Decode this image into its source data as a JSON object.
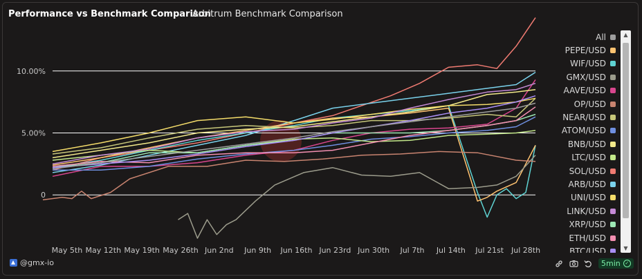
{
  "header": {
    "title": "Performance vs Benchmark Comparison",
    "subtitle": "Arbitrum Benchmark Comparison"
  },
  "footer": {
    "brand": "@gmx-io",
    "refresh": "5min"
  },
  "icons": [
    "brand-logo-icon",
    "link-icon",
    "camera-icon",
    "undo-icon",
    "check-icon"
  ],
  "chart_data": {
    "type": "line",
    "ylim": [
      -3.5,
      13.5
    ],
    "xlim": [
      0,
      100
    ],
    "y_ticks": [
      {
        "value": 0,
        "label": "0"
      },
      {
        "value": 5,
        "label": "5.00%"
      },
      {
        "value": 10,
        "label": "10.00%"
      }
    ],
    "x_ticks": [
      {
        "x": 3,
        "label": "May 5th"
      },
      {
        "x": 10.5,
        "label": "May 12th"
      },
      {
        "x": 18.5,
        "label": "May 19th"
      },
      {
        "x": 26.5,
        "label": "May 26th"
      },
      {
        "x": 34.5,
        "label": "Jun 2nd"
      },
      {
        "x": 42.5,
        "label": "Jun 9th"
      },
      {
        "x": 50.5,
        "label": "Jun 16th"
      },
      {
        "x": 58.5,
        "label": "Jun 23rd"
      },
      {
        "x": 66.5,
        "label": "Jun 30th"
      },
      {
        "x": 74.5,
        "label": "Jul 7th"
      },
      {
        "x": 82.5,
        "label": "Jul 14th"
      },
      {
        "x": 90.5,
        "label": "Jul 21st"
      },
      {
        "x": 98,
        "label": "Jul 28th"
      }
    ],
    "legend": [
      {
        "name": "All",
        "color": "#9e9e9e"
      },
      {
        "name": "PEPE/USD",
        "color": "#ffc371"
      },
      {
        "name": "WIF/USD",
        "color": "#5fd3d3"
      },
      {
        "name": "GMX/USD",
        "color": "#9c9c8c"
      },
      {
        "name": "AAVE/USD",
        "color": "#d9468e"
      },
      {
        "name": "OP/USD",
        "color": "#c98470"
      },
      {
        "name": "NEAR/USD",
        "color": "#c7c77a"
      },
      {
        "name": "ATOM/USD",
        "color": "#6f8fe0"
      },
      {
        "name": "BNB/USD",
        "color": "#f2e98a"
      },
      {
        "name": "LTC/USD",
        "color": "#c3e88a"
      },
      {
        "name": "SOL/USD",
        "color": "#f07b72"
      },
      {
        "name": "ARB/USD",
        "color": "#7ad2ec"
      },
      {
        "name": "UNI/USD",
        "color": "#f5dd6a"
      },
      {
        "name": "LINK/USD",
        "color": "#c58ad6"
      },
      {
        "name": "XRP/USD",
        "color": "#9de8b4"
      },
      {
        "name": "ETH/USD",
        "color": "#f48fb1"
      },
      {
        "name": "BTC/USD",
        "color": "#a98ef5"
      }
    ],
    "series": [
      {
        "name": "SOL/USD",
        "color": "#f07b72",
        "x": [
          0,
          10,
          20,
          30,
          40,
          50,
          58,
          64,
          70,
          76,
          82,
          88,
          92,
          96,
          100
        ],
        "y": [
          2.0,
          3.0,
          3.6,
          4.2,
          5.0,
          5.8,
          6.4,
          7.2,
          8.0,
          9.0,
          10.3,
          10.5,
          10.2,
          12.0,
          14.3
        ]
      },
      {
        "name": "ARB/USD",
        "color": "#7ad2ec",
        "x": [
          0,
          10,
          20,
          30,
          40,
          50,
          58,
          66,
          74,
          82,
          90,
          96,
          100
        ],
        "y": [
          1.8,
          2.4,
          3.2,
          4.0,
          4.8,
          6.0,
          7.0,
          7.4,
          7.8,
          8.2,
          8.6,
          8.9,
          9.9
        ]
      },
      {
        "name": "WIF/USD",
        "color": "#5fd3d3",
        "x": [
          0,
          10,
          20,
          30,
          40,
          50,
          58,
          66,
          74,
          82,
          88,
          90,
          92,
          94,
          96,
          98,
          100
        ],
        "y": [
          2.2,
          2.8,
          3.6,
          4.4,
          5.0,
          5.6,
          6.2,
          6.5,
          6.8,
          7.2,
          0.2,
          -1.8,
          0.0,
          0.5,
          -0.3,
          0.2,
          4.0
        ]
      },
      {
        "name": "PEPE/USD",
        "color": "#ffc371",
        "x": [
          0,
          10,
          20,
          30,
          40,
          50,
          58,
          66,
          74,
          82,
          88,
          90,
          92,
          96,
          100
        ],
        "y": [
          2.4,
          3.0,
          3.8,
          4.6,
          5.2,
          5.8,
          6.2,
          6.3,
          6.6,
          7.0,
          -0.5,
          -0.2,
          0.3,
          1.0,
          4.0
        ]
      },
      {
        "name": "GMX/USD",
        "color": "#9c9c8c",
        "x": [
          26,
          28,
          30,
          32,
          34,
          36,
          38,
          42,
          46,
          52,
          58,
          64,
          70,
          76,
          82,
          88,
          92,
          96,
          100
        ],
        "y": [
          -2.0,
          -1.5,
          -3.5,
          -2.0,
          -3.2,
          -2.4,
          -2.0,
          -0.5,
          0.8,
          1.8,
          2.2,
          1.6,
          1.5,
          1.8,
          0.5,
          0.6,
          0.8,
          1.5,
          3.2
        ]
      },
      {
        "name": "OP/USD",
        "color": "#c98470",
        "x": [
          -2,
          2,
          4,
          6,
          8,
          12,
          16,
          24,
          32,
          40,
          48,
          56,
          64,
          72,
          80,
          88,
          96,
          100
        ],
        "y": [
          -0.4,
          -0.2,
          -0.3,
          0.3,
          -0.3,
          0.2,
          1.3,
          2.3,
          2.3,
          2.8,
          2.7,
          2.9,
          3.2,
          3.3,
          3.5,
          3.4,
          2.8,
          2.7
        ]
      },
      {
        "name": "AAVE/USD",
        "color": "#d9468e",
        "x": [
          0,
          10,
          20,
          30,
          40,
          50,
          58,
          66,
          74,
          82,
          90,
          96,
          100
        ],
        "y": [
          1.5,
          2.3,
          2.3,
          2.6,
          3.2,
          3.6,
          4.4,
          5.0,
          5.3,
          5.4,
          5.7,
          7.0,
          9.3
        ]
      },
      {
        "name": "NEAR/USD",
        "color": "#c7c77a",
        "x": [
          0,
          10,
          20,
          30,
          40,
          50,
          58,
          66,
          74,
          82,
          90,
          96,
          100
        ],
        "y": [
          3.3,
          3.8,
          4.6,
          5.3,
          5.6,
          5.4,
          5.6,
          6.0,
          6.0,
          6.2,
          6.5,
          6.3,
          7.8
        ]
      },
      {
        "name": "ATOM/USD",
        "color": "#6f8fe0",
        "x": [
          0,
          10,
          20,
          30,
          40,
          50,
          58,
          66,
          74,
          82,
          90,
          96,
          100
        ],
        "y": [
          2.0,
          2.0,
          2.3,
          2.9,
          3.3,
          3.6,
          4.0,
          4.5,
          4.7,
          5.0,
          5.2,
          5.5,
          6.3
        ]
      },
      {
        "name": "BNB/USD",
        "color": "#f2e98a",
        "x": [
          0,
          10,
          20,
          30,
          40,
          50,
          58,
          66,
          74,
          82,
          90,
          96,
          100
        ],
        "y": [
          3.0,
          3.6,
          4.2,
          5.0,
          5.3,
          5.5,
          5.9,
          6.3,
          6.7,
          7.2,
          8.1,
          8.3,
          8.5
        ]
      },
      {
        "name": "LTC/USD",
        "color": "#c3e88a",
        "x": [
          0,
          10,
          20,
          30,
          40,
          50,
          58,
          66,
          74,
          82,
          90,
          96,
          100
        ],
        "y": [
          2.8,
          3.2,
          3.6,
          3.4,
          4.0,
          4.5,
          4.6,
          4.3,
          4.4,
          4.8,
          4.9,
          5.0,
          5.2
        ]
      },
      {
        "name": "UNI/USD",
        "color": "#f5dd6a",
        "x": [
          0,
          10,
          20,
          30,
          40,
          50,
          58,
          66,
          74,
          82,
          90,
          96,
          100
        ],
        "y": [
          3.5,
          4.2,
          5.0,
          6.0,
          6.3,
          5.8,
          6.1,
          6.5,
          6.9,
          7.2,
          7.3,
          7.5,
          7.8
        ]
      },
      {
        "name": "LINK/USD",
        "color": "#c58ad6",
        "x": [
          0,
          10,
          20,
          30,
          40,
          50,
          58,
          66,
          74,
          82,
          90,
          96,
          100
        ],
        "y": [
          2.5,
          3.2,
          3.7,
          4.6,
          5.1,
          5.3,
          5.8,
          6.2,
          7.0,
          7.7,
          8.3,
          8.5,
          9.0
        ]
      },
      {
        "name": "XRP/USD",
        "color": "#9de8b4",
        "x": [
          0,
          10,
          20,
          30,
          40,
          50,
          58,
          66,
          74,
          82,
          90,
          96,
          100
        ],
        "y": [
          2.2,
          2.6,
          3.4,
          3.4,
          4.0,
          4.4,
          5.0,
          5.0,
          5.0,
          5.2,
          5.6,
          6.0,
          6.5
        ]
      },
      {
        "name": "ETH/USD",
        "color": "#f48fb1",
        "x": [
          0,
          10,
          20,
          30,
          40,
          50,
          58,
          66,
          74,
          82,
          90,
          96,
          100
        ],
        "y": [
          2.3,
          2.7,
          2.6,
          3.2,
          3.4,
          3.4,
          3.6,
          4.2,
          4.8,
          5.2,
          5.6,
          6.0,
          7.1
        ]
      },
      {
        "name": "BTC/USD",
        "color": "#a98ef5",
        "x": [
          0,
          10,
          20,
          30,
          40,
          50,
          58,
          66,
          74,
          82,
          90,
          96,
          100
        ],
        "y": [
          2.2,
          2.5,
          2.8,
          3.3,
          3.9,
          4.4,
          5.0,
          5.5,
          6.0,
          6.6,
          7.0,
          7.5,
          8.0
        ]
      },
      {
        "name": "All",
        "color": "#9e9e9e",
        "x": [
          0,
          10,
          20,
          30,
          40,
          50,
          58,
          66,
          74,
          82,
          90,
          96,
          100
        ],
        "y": [
          2.1,
          2.6,
          3.1,
          3.6,
          4.1,
          4.6,
          5.1,
          5.5,
          5.9,
          6.3,
          6.7,
          7.0,
          7.4
        ]
      }
    ]
  }
}
